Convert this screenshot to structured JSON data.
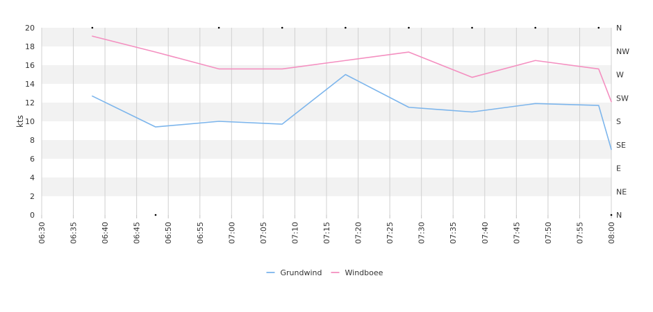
{
  "chart_data": {
    "type": "line",
    "ylabel": "kts",
    "ylim": [
      0,
      20
    ],
    "yticks": [
      0,
      2,
      4,
      6,
      8,
      10,
      12,
      14,
      16,
      18,
      20
    ],
    "xticks": [
      "06:30",
      "06:35",
      "06:40",
      "06:45",
      "06:50",
      "06:55",
      "07:00",
      "07:05",
      "07:10",
      "07:15",
      "07:20",
      "07:25",
      "07:30",
      "07:35",
      "07:40",
      "07:45",
      "07:50",
      "07:55",
      "08:00"
    ],
    "xrange": [
      "06:30",
      "08:00"
    ],
    "direction_axis": {
      "labels": [
        "N",
        "NW",
        "W",
        "SW",
        "S",
        "SE",
        "E",
        "NE",
        "N"
      ],
      "range": [
        360,
        0
      ]
    },
    "grid": true,
    "legend_position": "bottom",
    "series": [
      {
        "name": "Grundwind",
        "color": "#7cb5ec",
        "x": [
          "06:38",
          "06:48",
          "06:58",
          "07:08",
          "07:18",
          "07:28",
          "07:38",
          "07:48",
          "07:58",
          "08:00"
        ],
        "values": [
          12.7,
          9.4,
          10.0,
          9.7,
          15.0,
          11.5,
          11.0,
          11.9,
          11.7,
          7.0
        ]
      },
      {
        "name": "Windboee",
        "color": "#f48fc0",
        "x": [
          "06:38",
          "06:48",
          "06:58",
          "07:08",
          "07:18",
          "07:28",
          "07:38",
          "07:48",
          "07:58",
          "08:00"
        ],
        "values": [
          19.1,
          17.4,
          15.6,
          15.6,
          16.5,
          17.4,
          14.7,
          16.5,
          15.6,
          12.1
        ]
      }
    ],
    "direction_markers": {
      "x": [
        "06:38",
        "06:48",
        "06:58",
        "07:08",
        "07:18",
        "07:28",
        "07:38",
        "07:48",
        "07:58",
        "08:00"
      ],
      "degrees": [
        360,
        0,
        360,
        360,
        360,
        360,
        360,
        360,
        360,
        0
      ]
    }
  }
}
